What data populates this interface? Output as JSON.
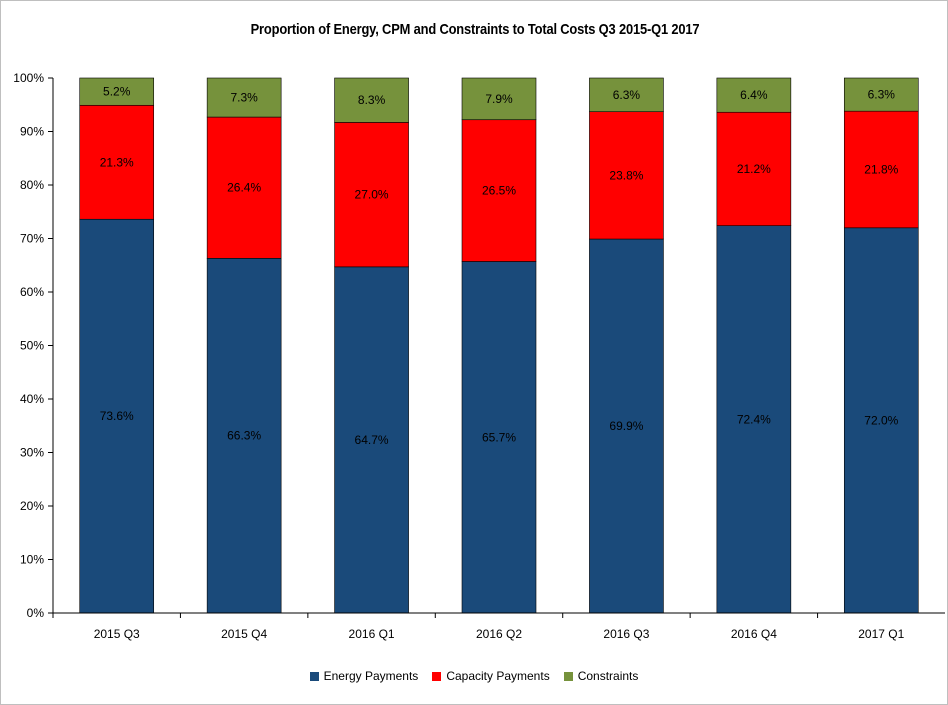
{
  "colors": {
    "energy": "#1a4a7a",
    "capacity": "#ff0000",
    "constraints": "#76923c",
    "gridline": "#d9d9d9",
    "axis": "#000000"
  },
  "chart_data": {
    "type": "bar",
    "stacked": true,
    "title": "Proportion of Energy, CPM and Constraints to Total Costs Q3 2015-Q1 2017",
    "xlabel": "",
    "ylabel": "",
    "ylim": [
      0,
      100
    ],
    "ytick_step": 10,
    "y_format": "percent",
    "grid": false,
    "legend_position": "bottom",
    "categories": [
      "2015 Q3",
      "2015 Q4",
      "2016 Q1",
      "2016 Q2",
      "2016 Q3",
      "2016 Q4",
      "2017 Q1"
    ],
    "series": [
      {
        "name": "Energy Payments",
        "color_key": "energy",
        "values": [
          73.6,
          66.3,
          64.7,
          65.7,
          69.9,
          72.4,
          72.0
        ],
        "labels": [
          "73.6%",
          "66.3%",
          "64.7%",
          "65.7%",
          "69.9%",
          "72.4%",
          "72.0%"
        ]
      },
      {
        "name": "Capacity Payments",
        "color_key": "capacity",
        "values": [
          21.3,
          26.4,
          27.0,
          26.5,
          23.8,
          21.2,
          21.8
        ],
        "labels": [
          "21.3%",
          "26.4%",
          "27.0%",
          "26.5%",
          "23.8%",
          "21.2%",
          "21.8%"
        ]
      },
      {
        "name": "Constraints",
        "color_key": "constraints",
        "values": [
          5.2,
          7.3,
          8.3,
          7.9,
          6.3,
          6.4,
          6.3
        ],
        "labels": [
          "5.2%",
          "7.3%",
          "8.3%",
          "7.9%",
          "6.3%",
          "6.4%",
          "6.3%"
        ]
      }
    ]
  }
}
